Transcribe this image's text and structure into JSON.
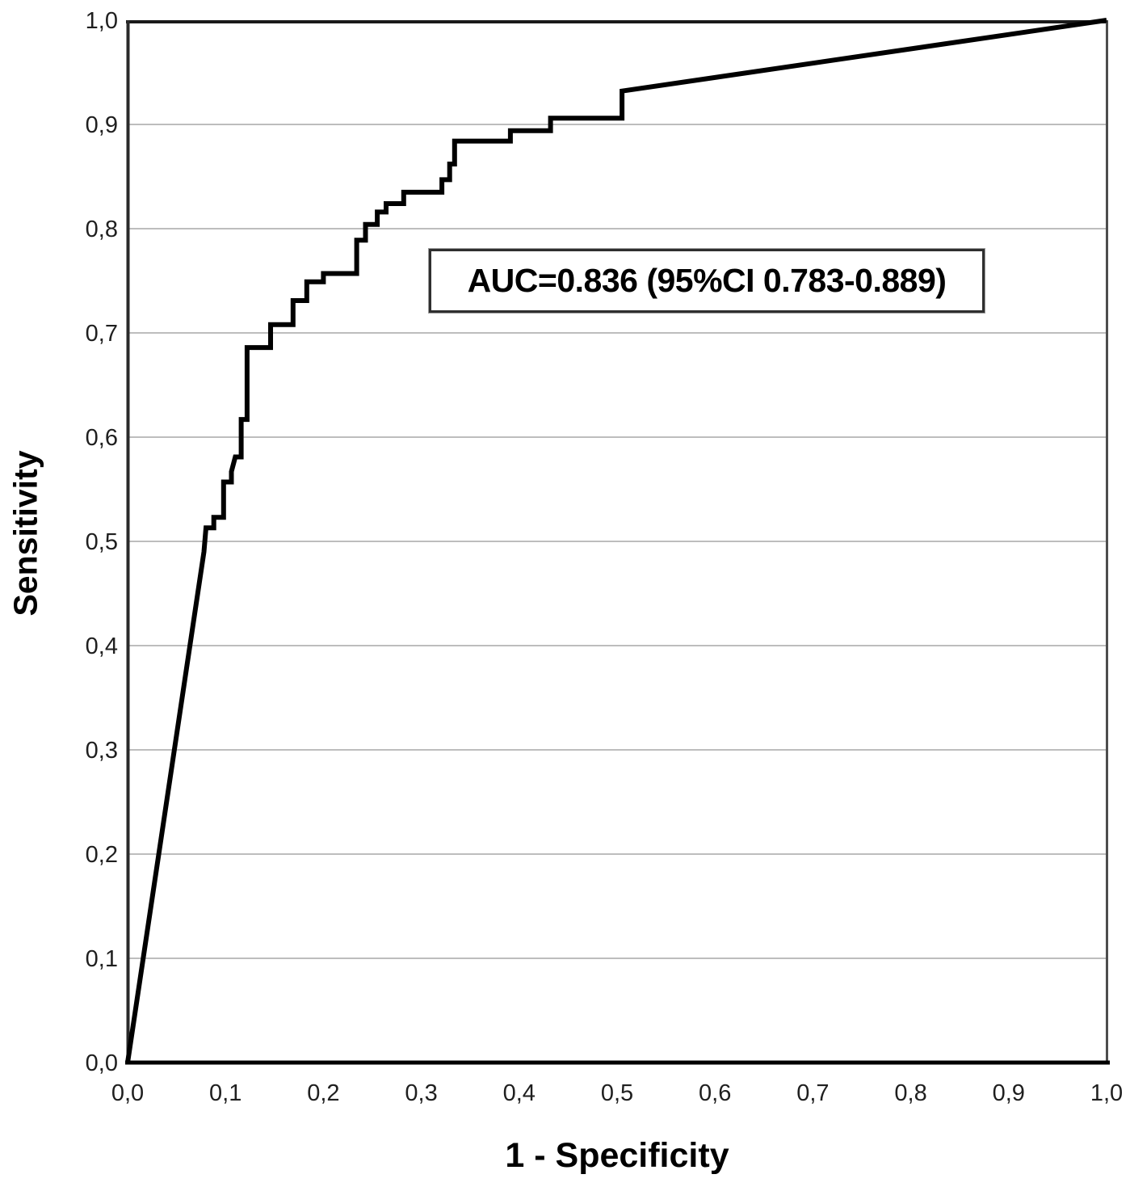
{
  "figure": {
    "background": "#ffffff"
  },
  "chart_data": {
    "type": "line",
    "subtype": "roc-curve",
    "title": "",
    "xlabel": "1 - Specificity",
    "ylabel": "Sensitivity",
    "xlim": [
      0,
      1
    ],
    "ylim": [
      0,
      1
    ],
    "grid": "horizontal-only",
    "legend_position": "none",
    "decimal_separator": "comma",
    "x_ticks": {
      "values": [
        0,
        0.1,
        0.2,
        0.3,
        0.4,
        0.5,
        0.6,
        0.7,
        0.8,
        0.9,
        1.0
      ],
      "labels": [
        "0,0",
        "0,1",
        "0,2",
        "0,3",
        "0,4",
        "0,5",
        "0,6",
        "0,7",
        "0,8",
        "0,9",
        "1,0"
      ]
    },
    "y_ticks": {
      "values": [
        0,
        0.1,
        0.2,
        0.3,
        0.4,
        0.5,
        0.6,
        0.7,
        0.8,
        0.9,
        1.0
      ],
      "labels": [
        "0,0",
        "0,1",
        "0,2",
        "0,3",
        "0,4",
        "0,5",
        "0,6",
        "0,7",
        "0,8",
        "0,9",
        "1,0"
      ]
    },
    "series": [
      {
        "name": "ROC curve",
        "color": "#000000",
        "stroke_width": 6,
        "points": [
          [
            0.0,
            0.0
          ],
          [
            0.078,
            0.49
          ],
          [
            0.08,
            0.513
          ],
          [
            0.088,
            0.513
          ],
          [
            0.088,
            0.523
          ],
          [
            0.098,
            0.523
          ],
          [
            0.098,
            0.557
          ],
          [
            0.106,
            0.557
          ],
          [
            0.106,
            0.567
          ],
          [
            0.11,
            0.581
          ],
          [
            0.116,
            0.581
          ],
          [
            0.116,
            0.617
          ],
          [
            0.122,
            0.617
          ],
          [
            0.122,
            0.686
          ],
          [
            0.146,
            0.686
          ],
          [
            0.146,
            0.708
          ],
          [
            0.169,
            0.708
          ],
          [
            0.169,
            0.731
          ],
          [
            0.183,
            0.731
          ],
          [
            0.183,
            0.749
          ],
          [
            0.2,
            0.749
          ],
          [
            0.2,
            0.757
          ],
          [
            0.234,
            0.757
          ],
          [
            0.234,
            0.789
          ],
          [
            0.243,
            0.789
          ],
          [
            0.243,
            0.804
          ],
          [
            0.255,
            0.804
          ],
          [
            0.255,
            0.816
          ],
          [
            0.264,
            0.816
          ],
          [
            0.264,
            0.824
          ],
          [
            0.282,
            0.824
          ],
          [
            0.282,
            0.835
          ],
          [
            0.321,
            0.835
          ],
          [
            0.321,
            0.847
          ],
          [
            0.329,
            0.847
          ],
          [
            0.329,
            0.862
          ],
          [
            0.334,
            0.862
          ],
          [
            0.334,
            0.884
          ],
          [
            0.391,
            0.884
          ],
          [
            0.391,
            0.894
          ],
          [
            0.432,
            0.894
          ],
          [
            0.432,
            0.906
          ],
          [
            0.505,
            0.906
          ],
          [
            0.505,
            0.932
          ],
          [
            1.0,
            1.0
          ]
        ]
      }
    ],
    "annotation": {
      "text": "AUC=0.836 (95%CI 0.783-0.889)",
      "auc": 0.836,
      "ci_level": "95%",
      "ci_low": 0.783,
      "ci_high": 0.889
    },
    "colors": {
      "background": "#ffffff",
      "grid": "#bdbdbd",
      "axis_top": "#1a1a1a",
      "axis_left": "#2a2a2a",
      "axis_right": "#4d4d4d",
      "axis_bottom": "#000000",
      "tick_label": "#1f1f1f",
      "curve": "#000000"
    }
  }
}
